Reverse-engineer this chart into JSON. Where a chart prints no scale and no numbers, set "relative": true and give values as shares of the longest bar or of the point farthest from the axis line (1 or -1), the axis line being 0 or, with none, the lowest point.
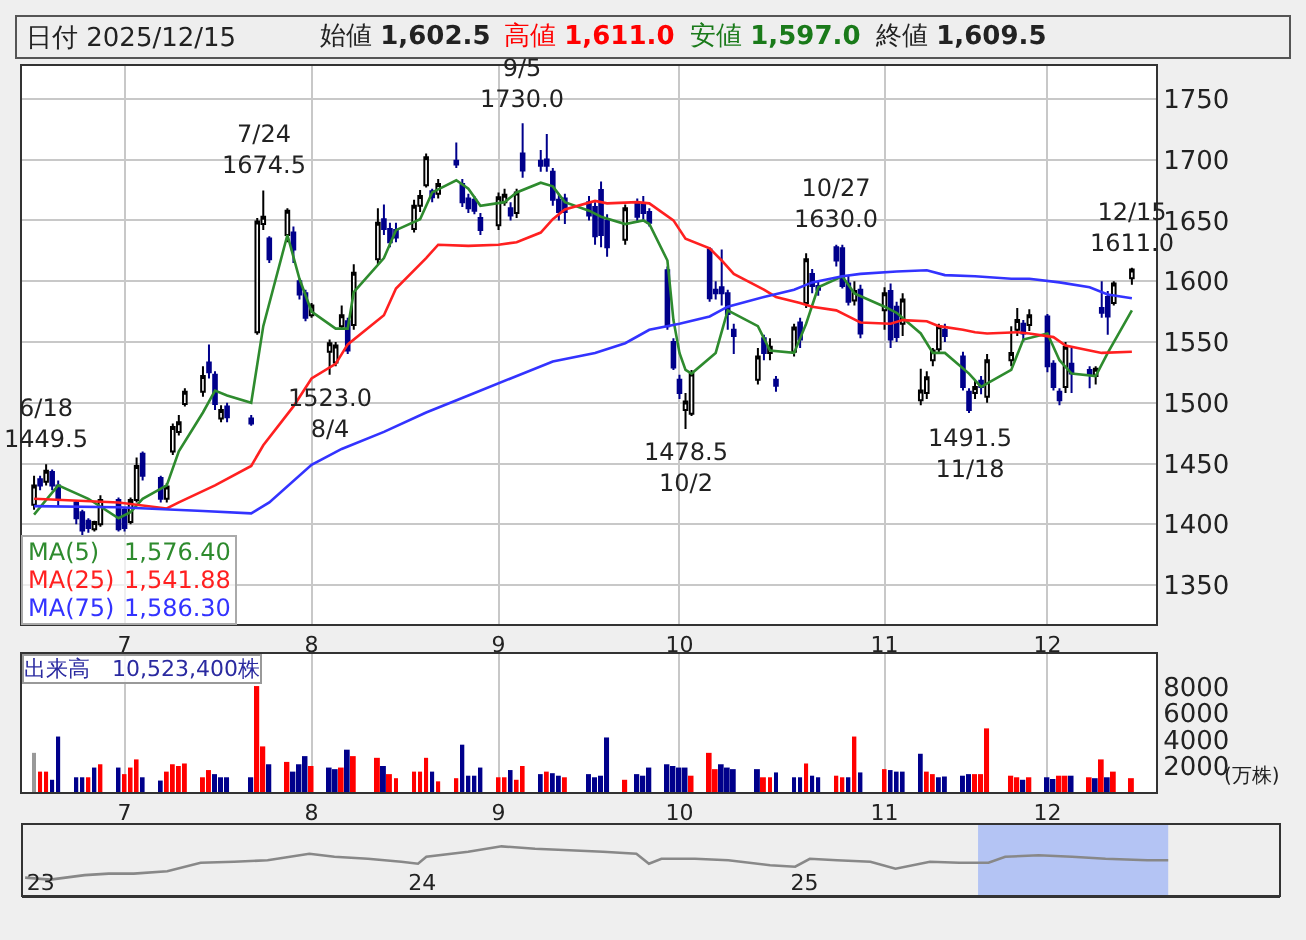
{
  "chart_data": [
    {
      "type": "candlestick",
      "title": "日付 2025/12/15",
      "annotations": [
        "始値 1,602.5",
        "高値 1,611.0",
        "安値 1,597.0",
        "終値 1,609.5",
        "1,576.40",
        "1,541.88",
        "1,586.30",
        {
          "text": "6/18\n1449.5",
          "x": "2025-06-18",
          "y": 1449.5
        },
        {
          "text": "7/24\n1674.5",
          "x": "2025-07-24",
          "y": 1674.5
        },
        {
          "text": "1523.0\n8/4",
          "x": "2025-08-04",
          "y": 1523.0
        },
        {
          "text": "9/5\n1730.0",
          "x": "2025-09-05",
          "y": 1730.0
        },
        {
          "text": "1478.5\n10/2",
          "x": "2025-10-02",
          "y": 1478.5
        },
        {
          "text": "10/27\n1630.0",
          "x": "2025-10-27",
          "y": 1630.0
        },
        {
          "text": "1491.5\n11/18",
          "x": "2025-11-18",
          "y": 1491.5
        },
        {
          "text": "12/15\n1611.0",
          "x": "2025-12-15",
          "y": 1611.0
        }
      ],
      "x": [
        "2025-06-16",
        "2025-06-17",
        "2025-06-18",
        "2025-06-19",
        "2025-06-20",
        "2025-06-23",
        "2025-06-24",
        "2025-06-25",
        "2025-06-26",
        "2025-06-27",
        "2025-06-30",
        "2025-07-01",
        "2025-07-02",
        "2025-07-03",
        "2025-07-04",
        "2025-07-07",
        "2025-07-08",
        "2025-07-09",
        "2025-07-10",
        "2025-07-11",
        "2025-07-14",
        "2025-07-15",
        "2025-07-16",
        "2025-07-17",
        "2025-07-18",
        "2025-07-22",
        "2025-07-23",
        "2025-07-24",
        "2025-07-25",
        "2025-07-28",
        "2025-07-29",
        "2025-07-30",
        "2025-07-31",
        "2025-08-01",
        "2025-08-04",
        "2025-08-05",
        "2025-08-06",
        "2025-08-07",
        "2025-08-08",
        "2025-08-12",
        "2025-08-13",
        "2025-08-14",
        "2025-08-15",
        "2025-08-18",
        "2025-08-19",
        "2025-08-20",
        "2025-08-21",
        "2025-08-22",
        "2025-08-25",
        "2025-08-26",
        "2025-08-27",
        "2025-08-28",
        "2025-08-29",
        "2025-09-01",
        "2025-09-02",
        "2025-09-03",
        "2025-09-04",
        "2025-09-05",
        "2025-09-08",
        "2025-09-09",
        "2025-09-10",
        "2025-09-11",
        "2025-09-12",
        "2025-09-16",
        "2025-09-17",
        "2025-09-18",
        "2025-09-19",
        "2025-09-22",
        "2025-09-24",
        "2025-09-25",
        "2025-09-26",
        "2025-09-29",
        "2025-09-30",
        "2025-10-01",
        "2025-10-02",
        "2025-10-03",
        "2025-10-06",
        "2025-10-07",
        "2025-10-08",
        "2025-10-09",
        "2025-10-10",
        "2025-10-14",
        "2025-10-15",
        "2025-10-16",
        "2025-10-17",
        "2025-10-20",
        "2025-10-21",
        "2025-10-22",
        "2025-10-23",
        "2025-10-24",
        "2025-10-27",
        "2025-10-28",
        "2025-10-29",
        "2025-10-30",
        "2025-10-31",
        "2025-11-04",
        "2025-11-05",
        "2025-11-06",
        "2025-11-07",
        "2025-11-10",
        "2025-11-11",
        "2025-11-12",
        "2025-11-13",
        "2025-11-14",
        "2025-11-17",
        "2025-11-18",
        "2025-11-19",
        "2025-11-20",
        "2025-11-21",
        "2025-11-25",
        "2025-11-26",
        "2025-11-27",
        "2025-11-28",
        "2025-12-01",
        "2025-12-02",
        "2025-12-03",
        "2025-12-04",
        "2025-12-05",
        "2025-12-08",
        "2025-12-09",
        "2025-12-10",
        "2025-12-11",
        "2025-12-12",
        "2025-12-15"
      ],
      "ohlc": [
        [
          1416,
          1440,
          1412,
          1432
        ],
        [
          1437,
          1440,
          1428,
          1432
        ],
        [
          1435,
          1449.5,
          1432,
          1444
        ],
        [
          1443,
          1445,
          1428,
          1432
        ],
        [
          1432,
          1436,
          1415,
          1420
        ],
        [
          1418,
          1420,
          1400,
          1405
        ],
        [
          1410,
          1412,
          1390,
          1395
        ],
        [
          1403,
          1405,
          1393,
          1397
        ],
        [
          1396,
          1403,
          1394,
          1402
        ],
        [
          1400,
          1424,
          1398,
          1420
        ],
        [
          1420,
          1422,
          1394,
          1396
        ],
        [
          1412,
          1414,
          1394,
          1397
        ],
        [
          1402,
          1422,
          1400,
          1420
        ],
        [
          1420,
          1455,
          1418,
          1448
        ],
        [
          1458,
          1460,
          1436,
          1440
        ],
        [
          1438,
          1440,
          1418,
          1421
        ],
        [
          1421,
          1434,
          1418,
          1431
        ],
        [
          1460,
          1483,
          1457,
          1480
        ],
        [
          1476,
          1490,
          1473,
          1484
        ],
        [
          1499,
          1512,
          1497,
          1509
        ],
        [
          1509,
          1530,
          1505,
          1522
        ],
        [
          1533,
          1548,
          1520,
          1525
        ],
        [
          1523,
          1526,
          1494,
          1499
        ],
        [
          1487,
          1498,
          1484,
          1494
        ],
        [
          1497,
          1500,
          1484,
          1488
        ],
        [
          1487,
          1490,
          1481,
          1483
        ],
        [
          1558,
          1652,
          1556,
          1649
        ],
        [
          1647,
          1674.5,
          1642,
          1653
        ],
        [
          1635,
          1637,
          1615,
          1618
        ],
        [
          1638,
          1660,
          1632,
          1658
        ],
        [
          1640,
          1645,
          1615,
          1626
        ],
        [
          1600,
          1602,
          1585,
          1589
        ],
        [
          1590,
          1593,
          1567,
          1570
        ],
        [
          1572,
          1582,
          1570,
          1580
        ],
        [
          1542,
          1552,
          1523,
          1549
        ],
        [
          1533,
          1550,
          1530,
          1547
        ],
        [
          1563,
          1580,
          1560,
          1572
        ],
        [
          1567,
          1570,
          1540,
          1543
        ],
        [
          1564,
          1614,
          1560,
          1607
        ],
        [
          1618,
          1660,
          1614,
          1648
        ],
        [
          1651,
          1663,
          1638,
          1643
        ],
        [
          1643,
          1648,
          1628,
          1632
        ],
        [
          1642,
          1648,
          1632,
          1636
        ],
        [
          1643,
          1667,
          1640,
          1662
        ],
        [
          1662,
          1675,
          1657,
          1670
        ],
        [
          1679,
          1705,
          1677,
          1702
        ],
        [
          1674,
          1676,
          1665,
          1669
        ],
        [
          1672,
          1684,
          1668,
          1680
        ],
        [
          1699,
          1714,
          1693,
          1696
        ],
        [
          1680,
          1684,
          1661,
          1665
        ],
        [
          1668,
          1672,
          1656,
          1660
        ],
        [
          1667,
          1670,
          1655,
          1658
        ],
        [
          1652,
          1656,
          1638,
          1642
        ],
        [
          1646,
          1673,
          1642,
          1669
        ],
        [
          1665,
          1676,
          1662,
          1671
        ],
        [
          1660,
          1665,
          1650,
          1654
        ],
        [
          1656,
          1676,
          1652,
          1673
        ],
        [
          1705,
          1730,
          1685,
          1691
        ],
        [
          1699,
          1708,
          1690,
          1695
        ],
        [
          1700,
          1721,
          1690,
          1695
        ],
        [
          1690,
          1693,
          1662,
          1667
        ],
        [
          1667,
          1672,
          1650,
          1657
        ],
        [
          1668,
          1672,
          1647,
          1657
        ],
        [
          1665,
          1670,
          1650,
          1654
        ],
        [
          1661,
          1665,
          1630,
          1637
        ],
        [
          1675,
          1682,
          1628,
          1638
        ],
        [
          1650,
          1655,
          1620,
          1628
        ],
        [
          1634,
          1663,
          1630,
          1660
        ],
        [
          1664,
          1668,
          1648,
          1653
        ],
        [
          1664,
          1670,
          1650,
          1656
        ],
        [
          1657,
          1660,
          1645,
          1648
        ],
        [
          1609,
          1612,
          1560,
          1563
        ],
        [
          1550,
          1553,
          1527,
          1529
        ],
        [
          1519,
          1523,
          1503,
          1508
        ],
        [
          1494,
          1508,
          1478.5,
          1501
        ],
        [
          1491,
          1527,
          1489,
          1524
        ],
        [
          1626,
          1628,
          1583,
          1586
        ],
        [
          1593,
          1600,
          1585,
          1590
        ],
        [
          1595,
          1626,
          1580,
          1590
        ],
        [
          1590,
          1593,
          1560,
          1573
        ],
        [
          1560,
          1565,
          1540,
          1555
        ],
        [
          1519,
          1545,
          1515,
          1538
        ],
        [
          1553,
          1556,
          1535,
          1541
        ],
        [
          1541,
          1553,
          1535,
          1546
        ],
        [
          1519,
          1522,
          1509,
          1514
        ],
        [
          1542,
          1565,
          1538,
          1562
        ],
        [
          1566,
          1570,
          1545,
          1552
        ],
        [
          1582,
          1623,
          1578,
          1618
        ],
        [
          1606,
          1610,
          1590,
          1596
        ],
        [
          1596,
          1600,
          1588,
          1593
        ],
        [
          1628,
          1630,
          1612,
          1617
        ],
        [
          1627,
          1630,
          1594,
          1596
        ],
        [
          1598,
          1605,
          1580,
          1583
        ],
        [
          1584,
          1600,
          1580,
          1592
        ],
        [
          1593,
          1597,
          1553,
          1557
        ],
        [
          1576,
          1595,
          1560,
          1590
        ],
        [
          1592,
          1598,
          1545,
          1552
        ],
        [
          1579,
          1583,
          1550,
          1554
        ],
        [
          1565,
          1590,
          1555,
          1585
        ],
        [
          1502,
          1528,
          1498,
          1510
        ],
        [
          1508,
          1526,
          1503,
          1521
        ],
        [
          1535,
          1545,
          1530,
          1543
        ],
        [
          1544,
          1565,
          1540,
          1563
        ],
        [
          1560,
          1565,
          1550,
          1555
        ],
        [
          1538,
          1542,
          1510,
          1513
        ],
        [
          1509,
          1512,
          1491.5,
          1494
        ],
        [
          1508,
          1518,
          1503,
          1513
        ],
        [
          1518,
          1522,
          1507,
          1513
        ],
        [
          1505,
          1540,
          1500,
          1535
        ],
        [
          1535,
          1563,
          1530,
          1541
        ],
        [
          1560,
          1578,
          1555,
          1568
        ],
        [
          1565,
          1568,
          1550,
          1557
        ],
        [
          1564,
          1577,
          1559,
          1572
        ],
        [
          1571,
          1573,
          1525,
          1530
        ],
        [
          1532,
          1535,
          1510,
          1513
        ],
        [
          1509,
          1512,
          1498,
          1502
        ],
        [
          1513,
          1550,
          1508,
          1546
        ],
        [
          1532,
          1545,
          1508,
          1524
        ],
        [
          1527,
          1530,
          1512,
          1523
        ],
        [
          1522,
          1530,
          1515,
          1528
        ],
        [
          1578,
          1600,
          1570,
          1574
        ],
        [
          1587,
          1592,
          1556,
          1571
        ],
        [
          1582,
          1600,
          1580,
          1598
        ],
        [
          1602.5,
          1611.0,
          1597.0,
          1609.5
        ]
      ],
      "colors": [
        "#ffffff",
        "#00008b",
        "#ffffff",
        "#00008b",
        "#00008b",
        "#00008b",
        "#00008b",
        "#00008b",
        "#ffffff",
        "#ffffff",
        "#00008b",
        "#00008b",
        "#ffffff",
        "#ffffff",
        "#00008b",
        "#00008b",
        "#ffffff",
        "#ffffff",
        "#ffffff",
        "#ffffff",
        "#ffffff",
        "#00008b",
        "#00008b",
        "#ffffff",
        "#00008b",
        "#00008b",
        "#ffffff",
        "#ffffff",
        "#00008b",
        "#ffffff",
        "#00008b",
        "#00008b",
        "#00008b",
        "#ffffff",
        "#ffffff",
        "#ffffff",
        "#ffffff",
        "#00008b",
        "#ffffff",
        "#ffffff",
        "#00008b",
        "#00008b",
        "#00008b",
        "#ffffff",
        "#ffffff",
        "#ffffff",
        "#00008b",
        "#ffffff",
        "#00008b",
        "#00008b",
        "#00008b",
        "#00008b",
        "#00008b",
        "#ffffff",
        "#ffffff",
        "#00008b",
        "#ffffff",
        "#00008b",
        "#00008b",
        "#00008b",
        "#00008b",
        "#00008b",
        "#00008b",
        "#00008b",
        "#00008b",
        "#00008b",
        "#00008b",
        "#ffffff",
        "#00008b",
        "#00008b",
        "#00008b",
        "#00008b",
        "#00008b",
        "#00008b",
        "#ffffff",
        "#ffffff",
        "#00008b",
        "#00008b",
        "#00008b",
        "#00008b",
        "#00008b",
        "#ffffff",
        "#00008b",
        "#ffffff",
        "#00008b",
        "#ffffff",
        "#00008b",
        "#ffffff",
        "#00008b",
        "#00008b",
        "#00008b",
        "#00008b",
        "#00008b",
        "#ffffff",
        "#00008b",
        "#ffffff",
        "#00008b",
        "#00008b",
        "#ffffff",
        "#ffffff",
        "#ffffff",
        "#ffffff",
        "#ffffff",
        "#00008b",
        "#00008b",
        "#00008b",
        "#ffffff",
        "#00008b",
        "#ffffff",
        "#ffffff",
        "#ffffff",
        "#00008b",
        "#ffffff",
        "#00008b",
        "#00008b",
        "#00008b",
        "#ffffff",
        "#00008b",
        "#00008b",
        "#ffffff",
        "#00008b",
        "#00008b",
        "#ffffff",
        "#ffffff"
      ],
      "series": [
        {
          "name": "MA(5)",
          "type": "line",
          "color": "#2e8b2e",
          "x": [
            "2025-06-16",
            "2025-06-20",
            "2025-06-25",
            "2025-06-30",
            "2025-07-02",
            "2025-07-04",
            "2025-07-08",
            "2025-07-10",
            "2025-07-14",
            "2025-07-16",
            "2025-07-18",
            "2025-07-22",
            "2025-07-24",
            "2025-07-28",
            "2025-07-30",
            "2025-08-01",
            "2025-08-05",
            "2025-08-07",
            "2025-08-08",
            "2025-08-13",
            "2025-08-15",
            "2025-08-19",
            "2025-08-21",
            "2025-08-25",
            "2025-08-27",
            "2025-08-29",
            "2025-09-02",
            "2025-09-04",
            "2025-09-08",
            "2025-09-10",
            "2025-09-12",
            "2025-09-16",
            "2025-09-18",
            "2025-09-22",
            "2025-09-25",
            "2025-09-26",
            "2025-09-29",
            "2025-09-30",
            "2025-10-01",
            "2025-10-02",
            "2025-10-03",
            "2025-10-07",
            "2025-10-09",
            "2025-10-14",
            "2025-10-16",
            "2025-10-20",
            "2025-10-22",
            "2025-10-24",
            "2025-10-28",
            "2025-10-30",
            "2025-11-04",
            "2025-11-06",
            "2025-11-10",
            "2025-11-12",
            "2025-11-14",
            "2025-11-18",
            "2025-11-20",
            "2025-11-25",
            "2025-11-27",
            "2025-12-01",
            "2025-12-03",
            "2025-12-05",
            "2025-12-09",
            "2025-12-11",
            "2025-12-15"
          ],
          "values": [
            1408,
            1432,
            1421,
            1405,
            1410,
            1421,
            1432,
            1460,
            1492,
            1510,
            1506,
            1500,
            1563,
            1638,
            1602,
            1575,
            1561,
            1561,
            1591,
            1619,
            1642,
            1651,
            1673,
            1683,
            1676,
            1662,
            1665,
            1673,
            1681,
            1678,
            1665,
            1658,
            1653,
            1647,
            1650,
            1647,
            1617,
            1568,
            1541,
            1527,
            1524,
            1541,
            1576,
            1563,
            1543,
            1541,
            1565,
            1595,
            1604,
            1590,
            1579,
            1574,
            1557,
            1541,
            1541,
            1524,
            1513,
            1527,
            1552,
            1557,
            1535,
            1524,
            1522,
            1541,
            1576
          ]
        },
        {
          "name": "MA(25)",
          "type": "line",
          "color": "#ff2020",
          "x": [
            "2025-06-16",
            "2025-06-30",
            "2025-07-08",
            "2025-07-10",
            "2025-07-16",
            "2025-07-22",
            "2025-07-24",
            "2025-07-29",
            "2025-08-01",
            "2025-08-05",
            "2025-08-07",
            "2025-08-13",
            "2025-08-15",
            "2025-08-20",
            "2025-08-22",
            "2025-08-27",
            "2025-09-01",
            "2025-09-04",
            "2025-09-08",
            "2025-09-10",
            "2025-09-12",
            "2025-09-17",
            "2025-09-19",
            "2025-09-24",
            "2025-09-26",
            "2025-09-30",
            "2025-10-02",
            "2025-10-06",
            "2025-10-08",
            "2025-10-10",
            "2025-10-15",
            "2025-10-17",
            "2025-10-21",
            "2025-10-23",
            "2025-10-27",
            "2025-10-29",
            "2025-10-31",
            "2025-11-05",
            "2025-11-07",
            "2025-11-11",
            "2025-11-13",
            "2025-11-17",
            "2025-11-19",
            "2025-11-21",
            "2025-11-26",
            "2025-11-28",
            "2025-12-02",
            "2025-12-04",
            "2025-12-08",
            "2025-12-10",
            "2025-12-15"
          ],
          "values": [
            1421,
            1418,
            1413,
            1418,
            1432,
            1448,
            1465,
            1497,
            1520,
            1532,
            1548,
            1572,
            1594,
            1619,
            1630,
            1629,
            1630,
            1632,
            1640,
            1651,
            1659,
            1666,
            1664,
            1665,
            1664,
            1650,
            1635,
            1627,
            1617,
            1606,
            1593,
            1587,
            1582,
            1579,
            1576,
            1571,
            1566,
            1565,
            1568,
            1567,
            1563,
            1560,
            1558,
            1557,
            1558,
            1557,
            1554,
            1547,
            1543,
            1541,
            1542
          ]
        },
        {
          "name": "MA(75)",
          "type": "line",
          "color": "#3333ff",
          "x": [
            "2025-06-16",
            "2025-06-30",
            "2025-07-14",
            "2025-07-22",
            "2025-07-25",
            "2025-08-01",
            "2025-08-06",
            "2025-08-13",
            "2025-08-20",
            "2025-08-27",
            "2025-09-03",
            "2025-09-10",
            "2025-09-17",
            "2025-09-22",
            "2025-09-26",
            "2025-10-01",
            "2025-10-06",
            "2025-10-09",
            "2025-10-15",
            "2025-10-20",
            "2025-10-23",
            "2025-10-28",
            "2025-10-31",
            "2025-11-06",
            "2025-11-11",
            "2025-11-14",
            "2025-11-19",
            "2025-11-25",
            "2025-11-28",
            "2025-12-03",
            "2025-12-08",
            "2025-12-11",
            "2025-12-15"
          ],
          "values": [
            1415,
            1414,
            1411,
            1409,
            1418,
            1449,
            1462,
            1476,
            1492,
            1506,
            1520,
            1534,
            1541,
            1549,
            1560,
            1565,
            1571,
            1579,
            1587,
            1593,
            1599,
            1604,
            1606,
            1608,
            1609,
            1605,
            1604,
            1602,
            1602,
            1599,
            1595,
            1589,
            1586
          ]
        }
      ],
      "xlim": [
        "2025-06-14",
        "2025-12-19"
      ],
      "xticks": [
        {
          "value": "2025-07-01",
          "label": "7"
        },
        {
          "value": "2025-08-01",
          "label": "8"
        },
        {
          "value": "2025-09-01",
          "label": "9"
        },
        {
          "value": "2025-10-01",
          "label": "10"
        },
        {
          "value": "2025-11-04",
          "label": "11"
        },
        {
          "value": "2025-12-01",
          "label": "12"
        }
      ],
      "ylim": [
        1318,
        1777
      ],
      "yticks": [
        1350,
        1400,
        1450,
        1500,
        1550,
        1600,
        1650,
        1700,
        1750
      ],
      "grid": true
    },
    {
      "type": "bar",
      "title": "出来高　10,523,400株",
      "ylabel": "(万株)",
      "x": [
        "2025-06-16",
        "2025-06-17",
        "2025-06-18",
        "2025-06-19",
        "2025-06-20",
        "2025-06-23",
        "2025-06-24",
        "2025-06-25",
        "2025-06-26",
        "2025-06-27",
        "2025-06-30",
        "2025-07-01",
        "2025-07-02",
        "2025-07-03",
        "2025-07-04",
        "2025-07-07",
        "2025-07-08",
        "2025-07-09",
        "2025-07-10",
        "2025-07-11",
        "2025-07-14",
        "2025-07-15",
        "2025-07-16",
        "2025-07-17",
        "2025-07-18",
        "2025-07-22",
        "2025-07-23",
        "2025-07-24",
        "2025-07-25",
        "2025-07-28",
        "2025-07-29",
        "2025-07-30",
        "2025-07-31",
        "2025-08-01",
        "2025-08-04",
        "2025-08-05",
        "2025-08-06",
        "2025-08-07",
        "2025-08-08",
        "2025-08-12",
        "2025-08-13",
        "2025-08-14",
        "2025-08-15",
        "2025-08-18",
        "2025-08-19",
        "2025-08-20",
        "2025-08-21",
        "2025-08-22",
        "2025-08-25",
        "2025-08-26",
        "2025-08-27",
        "2025-08-28",
        "2025-08-29",
        "2025-09-01",
        "2025-09-02",
        "2025-09-03",
        "2025-09-04",
        "2025-09-05",
        "2025-09-08",
        "2025-09-09",
        "2025-09-10",
        "2025-09-11",
        "2025-09-12",
        "2025-09-16",
        "2025-09-17",
        "2025-09-18",
        "2025-09-19",
        "2025-09-22",
        "2025-09-24",
        "2025-09-25",
        "2025-09-26",
        "2025-09-29",
        "2025-09-30",
        "2025-10-01",
        "2025-10-02",
        "2025-10-03",
        "2025-10-06",
        "2025-10-07",
        "2025-10-08",
        "2025-10-09",
        "2025-10-10",
        "2025-10-14",
        "2025-10-15",
        "2025-10-16",
        "2025-10-17",
        "2025-10-20",
        "2025-10-21",
        "2025-10-22",
        "2025-10-23",
        "2025-10-24",
        "2025-10-27",
        "2025-10-28",
        "2025-10-29",
        "2025-10-30",
        "2025-10-31",
        "2025-11-04",
        "2025-11-05",
        "2025-11-06",
        "2025-11-07",
        "2025-11-10",
        "2025-11-11",
        "2025-11-12",
        "2025-11-13",
        "2025-11-14",
        "2025-11-17",
        "2025-11-18",
        "2025-11-19",
        "2025-11-20",
        "2025-11-21",
        "2025-11-25",
        "2025-11-26",
        "2025-11-27",
        "2025-11-28",
        "2025-12-01",
        "2025-12-02",
        "2025-12-03",
        "2025-12-04",
        "2025-12-05",
        "2025-12-08",
        "2025-12-09",
        "2025-12-10",
        "2025-12-11",
        "2025-12-12",
        "2025-12-15"
      ],
      "values": [
        2980,
        1550,
        1550,
        930,
        4220,
        1120,
        1120,
        1120,
        1860,
        2110,
        1860,
        1360,
        1860,
        2480,
        1120,
        870,
        1550,
        2110,
        1980,
        2170,
        1120,
        1670,
        1360,
        1120,
        1120,
        1120,
        8060,
        3470,
        2110,
        2290,
        1550,
        2110,
        2730,
        1980,
        1860,
        1740,
        1860,
        3220,
        2730,
        2600,
        1980,
        1360,
        1050,
        1550,
        1550,
        2600,
        1550,
        810,
        1050,
        3600,
        1240,
        1240,
        1860,
        1120,
        1120,
        1670,
        930,
        1980,
        1360,
        1550,
        1430,
        1240,
        1120,
        1360,
        1120,
        1240,
        4150,
        930,
        1360,
        1240,
        1860,
        2110,
        1980,
        1860,
        1860,
        1240,
        2980,
        1740,
        2110,
        1860,
        1740,
        1740,
        1120,
        1120,
        1490,
        1120,
        1120,
        2170,
        1240,
        1120,
        1240,
        1120,
        1120,
        4220,
        1490,
        1740,
        1670,
        1550,
        1550,
        2910,
        1550,
        1360,
        1120,
        1180,
        1240,
        1360,
        1360,
        1360,
        4840,
        1240,
        1120,
        930,
        1120,
        1120,
        990,
        1240,
        1240,
        1240,
        1120,
        1050,
        2480,
        1120,
        1550,
        1052
      ],
      "colors": [
        "#999999",
        "#ff0000",
        "#ff0000",
        "#00008b",
        "#00008b",
        "#00008b",
        "#00008b",
        "#ff0000",
        "#00008b",
        "#ff0000",
        "#00008b",
        "#ff0000",
        "#ff0000",
        "#ff0000",
        "#00008b",
        "#00008b",
        "#ff0000",
        "#ff0000",
        "#ff0000",
        "#ff0000",
        "#ff0000",
        "#ff0000",
        "#00008b",
        "#00008b",
        "#00008b",
        "#00008b",
        "#ff0000",
        "#ff0000",
        "#00008b",
        "#ff0000",
        "#00008b",
        "#00008b",
        "#00008b",
        "#ff0000",
        "#00008b",
        "#00008b",
        "#ff0000",
        "#00008b",
        "#ff0000",
        "#ff0000",
        "#00008b",
        "#ff0000",
        "#ff0000",
        "#ff0000",
        "#ff0000",
        "#ff0000",
        "#00008b",
        "#ff0000",
        "#ff0000",
        "#00008b",
        "#00008b",
        "#00008b",
        "#00008b",
        "#ff0000",
        "#ff0000",
        "#00008b",
        "#ff0000",
        "#ff0000",
        "#00008b",
        "#ff0000",
        "#00008b",
        "#00008b",
        "#ff0000",
        "#00008b",
        "#00008b",
        "#00008b",
        "#00008b",
        "#ff0000",
        "#00008b",
        "#00008b",
        "#00008b",
        "#00008b",
        "#00008b",
        "#00008b",
        "#00008b",
        "#ff0000",
        "#ff0000",
        "#ff0000",
        "#00008b",
        "#00008b",
        "#00008b",
        "#00008b",
        "#ff0000",
        "#ff0000",
        "#00008b",
        "#00008b",
        "#00008b",
        "#ff0000",
        "#00008b",
        "#00008b",
        "#ff0000",
        "#ff0000",
        "#00008b",
        "#ff0000",
        "#00008b",
        "#ff0000",
        "#00008b",
        "#00008b",
        "#00008b",
        "#00008b",
        "#ff0000",
        "#ff0000",
        "#00008b",
        "#00008b",
        "#00008b",
        "#00008b",
        "#ff0000",
        "#ff0000",
        "#ff0000",
        "#ff0000",
        "#ff0000",
        "#00008b",
        "#ff0000",
        "#00008b",
        "#00008b",
        "#ff0000",
        "#ff0000",
        "#00008b",
        "#ff0000",
        "#00008b",
        "#ff0000",
        "#00008b",
        "#ff0000",
        "#ff0000"
      ],
      "xlim": [
        "2025-06-14",
        "2025-12-19"
      ],
      "xticks": [
        {
          "value": "2025-07-01",
          "label": "7"
        },
        {
          "value": "2025-08-01",
          "label": "8"
        },
        {
          "value": "2025-09-01",
          "label": "9"
        },
        {
          "value": "2025-10-01",
          "label": "10"
        },
        {
          "value": "2025-11-04",
          "label": "11"
        },
        {
          "value": "2025-12-01",
          "label": "12"
        }
      ],
      "ylim": [
        0,
        10500
      ],
      "yticks": [
        2000,
        4000,
        6000,
        8000
      ],
      "grid": "x"
    },
    {
      "type": "line",
      "relative": true,
      "color": "#888888",
      "tick_labels": "x",
      "x": [
        "2022-12-17",
        "2023-01-10",
        "2023-02-12",
        "2023-03-07",
        "2023-03-31",
        "2023-05-02",
        "2023-06-03",
        "2023-07-05",
        "2023-08-06",
        "2023-09-15",
        "2023-10-09",
        "2023-11-10",
        "2023-12-12",
        "2023-12-28",
        "2024-01-05",
        "2024-02-14",
        "2024-03-17",
        "2024-04-18",
        "2024-05-21",
        "2024-06-22",
        "2024-07-24",
        "2024-08-05",
        "2024-08-17",
        "2024-09-18",
        "2024-10-20",
        "2024-11-29",
        "2024-12-23",
        "2025-01-06",
        "2025-02-01",
        "2025-03-05",
        "2025-03-29",
        "2025-05-01",
        "2025-05-29",
        "2025-06-26",
        "2025-07-12",
        "2025-08-13",
        "2025-09-14",
        "2025-10-16",
        "2025-11-25",
        "2025-12-15"
      ],
      "values": [
        0.37,
        0.33,
        0.42,
        0.45,
        0.45,
        0.5,
        0.67,
        0.69,
        0.72,
        0.85,
        0.79,
        0.75,
        0.69,
        0.65,
        0.79,
        0.89,
        1,
        0.95,
        0.92,
        0.89,
        0.85,
        0.65,
        0.75,
        0.75,
        0.72,
        0.62,
        0.59,
        0.75,
        0.72,
        0.69,
        0.55,
        0.69,
        0.67,
        0.67,
        0.79,
        0.82,
        0.79,
        0.75,
        0.72,
        0.72
      ],
      "xlim": [
        "2022-12-14",
        "2026-04-01"
      ],
      "xticks": [
        {
          "value": "2023-01-01",
          "label": "23"
        },
        {
          "value": "2024-01-01",
          "label": "24"
        },
        {
          "value": "2025-01-01",
          "label": "25"
        }
      ],
      "bands": [
        {
          "axis": "x",
          "from": "2025-06-16",
          "to": "2025-12-15",
          "color": "#b4c4f4"
        }
      ]
    }
  ]
}
